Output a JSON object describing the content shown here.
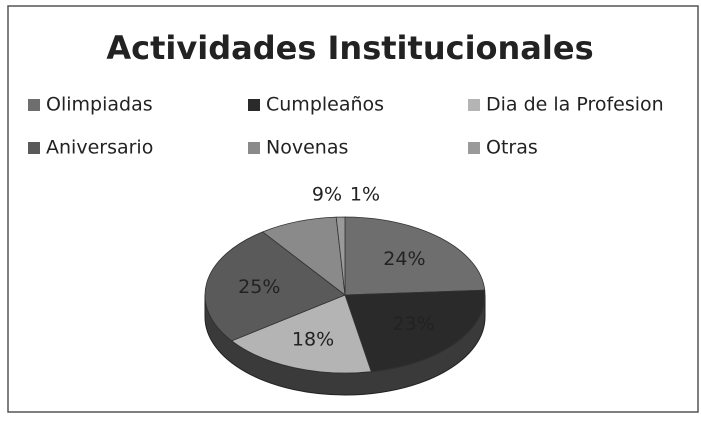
{
  "chart_data": {
    "type": "pie",
    "title": "Actividades Institucionales",
    "categories": [
      "Olimpiadas",
      "Cumpleaños",
      "Dia de la Profesion",
      "Aniversario",
      "Novenas",
      "Otras"
    ],
    "values": [
      24,
      23,
      18,
      25,
      9,
      1
    ],
    "value_labels": [
      "24%",
      "23%",
      "18%",
      "25%",
      "9%",
      "1%"
    ],
    "colors": [
      "#6e6e6e",
      "#2a2a2a",
      "#b4b4b4",
      "#5a5a5a",
      "#8a8a8a",
      "#9a9a9a"
    ],
    "legend": "top"
  }
}
